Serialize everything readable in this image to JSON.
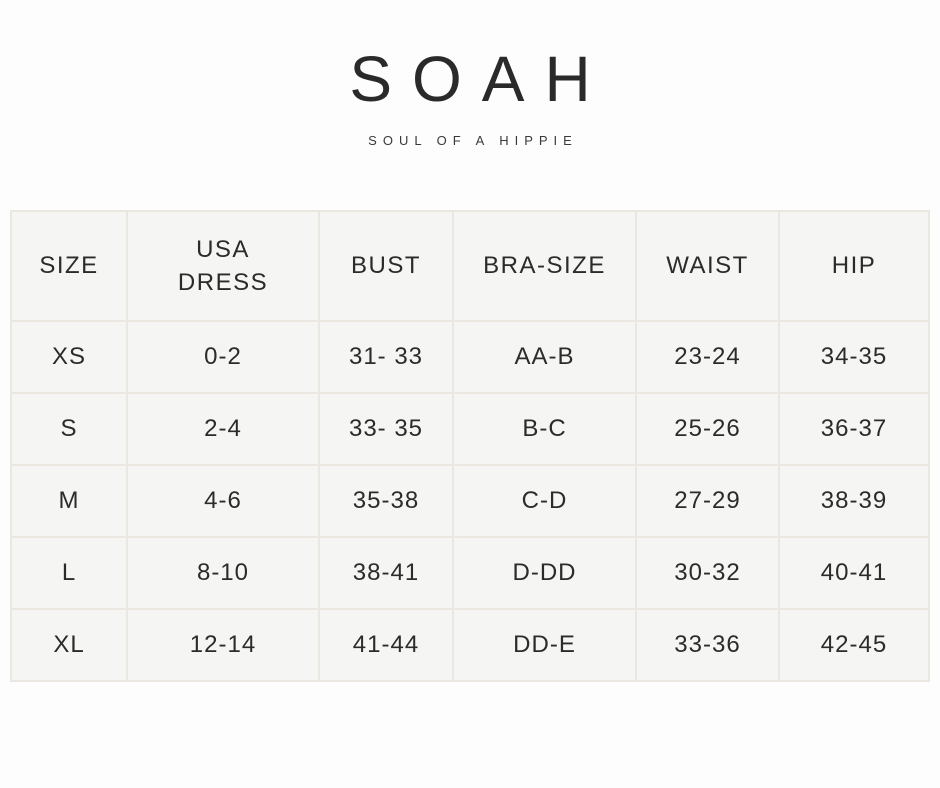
{
  "brand": {
    "logo_text": "SOAH",
    "tagline": "SOUL OF A HIPPIE"
  },
  "size_chart": {
    "columns": {
      "size": "SIZE",
      "usa_dress": "USA DRESS",
      "bust": "BUST",
      "bra_size": "BRA-SIZE",
      "waist": "WAIST",
      "hip": "HIP"
    },
    "rows": [
      {
        "size": "XS",
        "usa_dress": "0-2",
        "bust": "31- 33",
        "bra_size": "AA-B",
        "waist": "23-24",
        "hip": "34-35"
      },
      {
        "size": "S",
        "usa_dress": "2-4",
        "bust": "33- 35",
        "bra_size": "B-C",
        "waist": "25-26",
        "hip": "36-37"
      },
      {
        "size": "M",
        "usa_dress": "4-6",
        "bust": "35-38",
        "bra_size": "C-D",
        "waist": "27-29",
        "hip": "38-39"
      },
      {
        "size": "L",
        "usa_dress": "8-10",
        "bust": "38-41",
        "bra_size": "D-DD",
        "waist": "30-32",
        "hip": "40-41"
      },
      {
        "size": "XL",
        "usa_dress": "12-14",
        "bust": "41-44",
        "bra_size": "DD-E",
        "waist": "33-36",
        "hip": "42-45"
      }
    ]
  },
  "colors": {
    "page_background": "#fdfdfd",
    "cell_background": "#f5f5f3",
    "cell_border": "#e9e7df",
    "text": "#2b2b2b"
  }
}
